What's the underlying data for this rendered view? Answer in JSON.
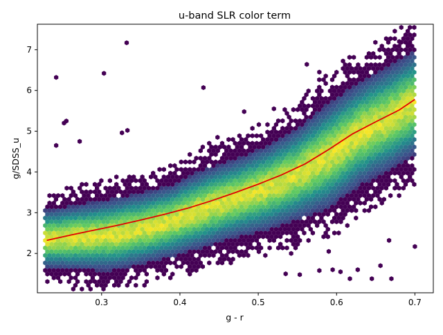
{
  "chart_data": {
    "type": "scatter",
    "title": "u-band SLR color term",
    "xlabel": "g - r",
    "ylabel": "g/SDSS_u",
    "xlim": [
      0.218,
      0.7235
    ],
    "ylim": [
      1.035,
      7.625
    ],
    "xticks": [
      0.3,
      0.4,
      0.5,
      0.6,
      0.7
    ],
    "yticks": [
      2,
      3,
      4,
      5,
      6,
      7
    ],
    "grid": false,
    "legend": "none",
    "density_style": "hexbin",
    "colormap": [
      "#440154",
      "#3b528b",
      "#21918c",
      "#5ec962",
      "#fde725"
    ],
    "fit_color": "#e00000",
    "density_trend": {
      "x": [
        0.23,
        0.27,
        0.31,
        0.35,
        0.39,
        0.43,
        0.47,
        0.51,
        0.55,
        0.59,
        0.63,
        0.67,
        0.7
      ],
      "center": [
        2.35,
        2.4,
        2.45,
        2.6,
        2.8,
        3.1,
        3.35,
        3.6,
        3.95,
        4.4,
        4.95,
        5.35,
        5.7
      ],
      "spread": [
        0.45,
        0.5,
        0.55,
        0.55,
        0.55,
        0.6,
        0.6,
        0.65,
        0.7,
        0.8,
        0.8,
        0.8,
        0.8
      ]
    },
    "fit_line": {
      "x": [
        0.23,
        0.26,
        0.29,
        0.32,
        0.35,
        0.38,
        0.41,
        0.44,
        0.47,
        0.5,
        0.53,
        0.56,
        0.59,
        0.62,
        0.65,
        0.68,
        0.7
      ],
      "y": [
        2.32,
        2.45,
        2.57,
        2.69,
        2.82,
        2.96,
        3.11,
        3.29,
        3.49,
        3.7,
        3.93,
        4.2,
        4.55,
        4.93,
        5.23,
        5.52,
        5.78
      ]
    },
    "outliers": [
      {
        "x": 0.242,
        "y": 6.32
      },
      {
        "x": 0.252,
        "y": 5.2
      },
      {
        "x": 0.255,
        "y": 5.25
      },
      {
        "x": 0.242,
        "y": 4.65
      },
      {
        "x": 0.272,
        "y": 4.75
      },
      {
        "x": 0.303,
        "y": 6.42
      },
      {
        "x": 0.332,
        "y": 7.17
      },
      {
        "x": 0.326,
        "y": 4.96
      },
      {
        "x": 0.333,
        "y": 5.02
      },
      {
        "x": 0.43,
        "y": 6.07
      },
      {
        "x": 0.448,
        "y": 4.85
      },
      {
        "x": 0.482,
        "y": 5.48
      },
      {
        "x": 0.52,
        "y": 5.55
      },
      {
        "x": 0.562,
        "y": 6.64
      },
      {
        "x": 0.578,
        "y": 6.45
      },
      {
        "x": 0.595,
        "y": 1.6
      },
      {
        "x": 0.605,
        "y": 1.55
      },
      {
        "x": 0.627,
        "y": 1.6
      },
      {
        "x": 0.656,
        "y": 1.7
      },
      {
        "x": 0.667,
        "y": 2.32
      },
      {
        "x": 0.7,
        "y": 2.17
      },
      {
        "x": 0.617,
        "y": 1.38
      },
      {
        "x": 0.645,
        "y": 1.38
      },
      {
        "x": 0.67,
        "y": 1.38
      },
      {
        "x": 0.578,
        "y": 1.58
      },
      {
        "x": 0.553,
        "y": 1.48
      },
      {
        "x": 0.535,
        "y": 1.5
      },
      {
        "x": 0.59,
        "y": 2.05
      },
      {
        "x": 0.542,
        "y": 2.0
      },
      {
        "x": 0.692,
        "y": 7.12
      },
      {
        "x": 0.68,
        "y": 7.2
      }
    ]
  }
}
